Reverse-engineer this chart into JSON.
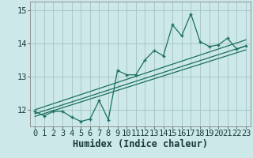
{
  "title": "",
  "xlabel": "Humidex (Indice chaleur)",
  "bg_color": "#cce8e8",
  "line_color": "#1a7060",
  "grid_color": "#aac8c8",
  "xlim": [
    -0.5,
    23.5
  ],
  "ylim": [
    11.5,
    15.25
  ],
  "yticks": [
    12,
    13,
    14,
    15
  ],
  "xticks": [
    0,
    1,
    2,
    3,
    4,
    5,
    6,
    7,
    8,
    9,
    10,
    11,
    12,
    13,
    14,
    15,
    16,
    17,
    18,
    19,
    20,
    21,
    22,
    23
  ],
  "data_x": [
    0,
    1,
    2,
    3,
    4,
    5,
    6,
    7,
    8,
    9,
    10,
    11,
    12,
    13,
    14,
    15,
    16,
    17,
    18,
    19,
    20,
    21,
    22,
    23
  ],
  "data_y": [
    11.95,
    11.82,
    11.95,
    11.95,
    11.78,
    11.65,
    11.72,
    12.28,
    11.7,
    13.18,
    13.05,
    13.05,
    13.5,
    13.78,
    13.62,
    14.55,
    14.22,
    14.88,
    14.05,
    13.9,
    13.95,
    14.15,
    13.82,
    13.92
  ],
  "reg_line1_start": 12.0,
  "reg_line1_end": 14.1,
  "reg_line2_start": 11.88,
  "reg_line2_end": 13.92,
  "reg_line3_start": 11.8,
  "reg_line3_end": 13.8,
  "tick_fontsize": 7.5,
  "xlabel_fontsize": 8.5
}
